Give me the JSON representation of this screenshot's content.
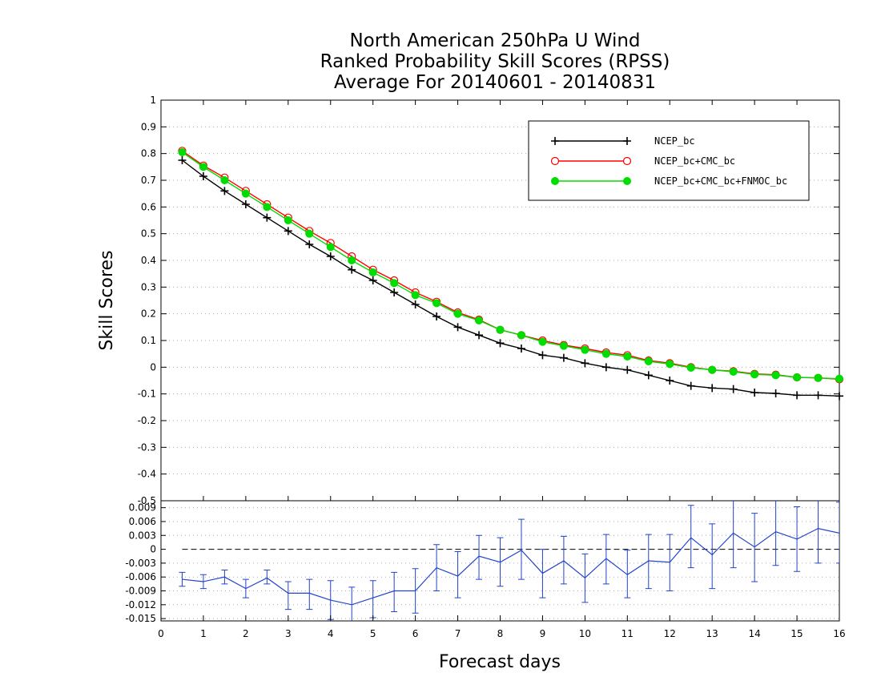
{
  "chart_data": [
    {
      "type": "line",
      "title": "North American 250hPa U Wind",
      "subtitle": "Ranked Probability Skill Scores (RPSS)",
      "subtitle2": "Average For 20140601 - 20140831",
      "ylabel": "Skill Scores",
      "xlabel": "Forecast days",
      "xlim": [
        0,
        16
      ],
      "ylim": [
        -0.5,
        1
      ],
      "y_ticks": [
        "-0.5",
        "-0.4",
        "-0.3",
        "-0.2",
        "-0.1",
        "0",
        "0.1",
        "0.2",
        "0.3",
        "0.4",
        "0.5",
        "0.6",
        "0.7",
        "0.8",
        "0.9",
        "1"
      ],
      "x_ticks": [
        "0",
        "1",
        "2",
        "3",
        "4",
        "5",
        "6",
        "7",
        "8",
        "9",
        "10",
        "11",
        "12",
        "13",
        "14",
        "15",
        "16"
      ],
      "grid": true,
      "legend_position": "top-right",
      "x": [
        0.5,
        1,
        1.5,
        2,
        2.5,
        3,
        3.5,
        4,
        4.5,
        5,
        5.5,
        6,
        6.5,
        7,
        7.5,
        8,
        8.5,
        9,
        9.5,
        10,
        10.5,
        11,
        11.5,
        12,
        12.5,
        13,
        13.5,
        14,
        14.5,
        15,
        15.5,
        16
      ],
      "series": [
        {
          "name": "NCEP_bc",
          "color": "#000000",
          "marker": "plus",
          "values": [
            0.775,
            0.715,
            0.66,
            0.61,
            0.56,
            0.51,
            0.46,
            0.415,
            0.365,
            0.325,
            0.28,
            0.235,
            0.19,
            0.15,
            0.12,
            0.09,
            0.07,
            0.045,
            0.035,
            0.015,
            0.0,
            -0.01,
            -0.03,
            -0.05,
            -0.07,
            -0.078,
            -0.082,
            -0.095,
            -0.098,
            -0.105,
            -0.105,
            -0.108
          ]
        },
        {
          "name": "NCEP_bc+CMC_bc",
          "color": "#ff0000",
          "marker": "open-circle",
          "values": [
            0.81,
            0.755,
            0.71,
            0.66,
            0.61,
            0.56,
            0.51,
            0.465,
            0.415,
            0.365,
            0.325,
            0.28,
            0.245,
            0.205,
            0.178,
            0.14,
            0.12,
            0.1,
            0.083,
            0.07,
            0.055,
            0.045,
            0.025,
            0.015,
            0.0,
            -0.01,
            -0.015,
            -0.025,
            -0.028,
            -0.038,
            -0.04,
            -0.045
          ]
        },
        {
          "name": "NCEP_bc+CMC_bc+FNMOC_bc",
          "color": "#00dd00",
          "marker": "filled-circle",
          "values": [
            0.805,
            0.75,
            0.7,
            0.65,
            0.6,
            0.55,
            0.5,
            0.45,
            0.4,
            0.355,
            0.315,
            0.27,
            0.24,
            0.2,
            0.175,
            0.14,
            0.12,
            0.095,
            0.08,
            0.065,
            0.05,
            0.04,
            0.022,
            0.012,
            -0.002,
            -0.01,
            -0.017,
            -0.027,
            -0.03,
            -0.038,
            -0.04,
            -0.043
          ]
        }
      ]
    },
    {
      "type": "line",
      "subtype": "errorbar",
      "xlim": [
        0,
        16
      ],
      "ylim": [
        -0.0155,
        0.0105
      ],
      "y_ticks": [
        "-0.015",
        "-0.012",
        "-0.009",
        "-0.006",
        "-0.003",
        "0",
        "0.003",
        "0.006",
        "0.009"
      ],
      "y_tick_values": [
        -0.015,
        -0.012,
        -0.009,
        -0.006,
        -0.003,
        0,
        0.003,
        0.006,
        0.009
      ],
      "grid": true,
      "zero_line": true,
      "series": [
        {
          "color": "#2244cc",
          "x": [
            0.5,
            1,
            1.5,
            2,
            2.5,
            3,
            3.5,
            4,
            4.5,
            5,
            5.5,
            6,
            6.5,
            7,
            7.5,
            8,
            8.5,
            9,
            9.5,
            10,
            10.5,
            11,
            11.5,
            12,
            12.5,
            13,
            13.5,
            14,
            14.5,
            15,
            15.5,
            16
          ],
          "values": [
            -0.0065,
            -0.007,
            -0.006,
            -0.0085,
            -0.0062,
            -0.0095,
            -0.0095,
            -0.011,
            -0.012,
            -0.0105,
            -0.009,
            -0.009,
            -0.004,
            -0.0058,
            -0.0015,
            -0.0028,
            -0.0002,
            -0.0052,
            -0.0025,
            -0.0062,
            -0.002,
            -0.0055,
            -0.0025,
            -0.0028,
            0.0025,
            -0.0012,
            0.0035,
            0.0005,
            0.0038,
            0.0022,
            0.0045,
            0.0035
          ],
          "error_low": [
            -0.008,
            -0.0085,
            -0.0075,
            -0.0105,
            -0.0075,
            -0.013,
            -0.013,
            -0.0152,
            -0.0158,
            -0.0148,
            -0.0135,
            -0.0138,
            -0.009,
            -0.0105,
            -0.0065,
            -0.008,
            -0.0065,
            -0.0105,
            -0.0075,
            -0.0115,
            -0.0075,
            -0.0105,
            -0.0085,
            -0.009,
            -0.004,
            -0.0085,
            -0.004,
            -0.007,
            -0.0035,
            -0.0048,
            -0.003,
            -0.003
          ],
          "error_high": [
            -0.005,
            -0.0055,
            -0.0045,
            -0.0065,
            -0.0045,
            -0.007,
            -0.0065,
            -0.0068,
            -0.0082,
            -0.0068,
            -0.005,
            -0.0042,
            0.001,
            -0.0005,
            0.003,
            0.0025,
            0.0065,
            0.0,
            0.0028,
            -0.001,
            0.0032,
            -0.0002,
            0.0032,
            0.0032,
            0.0095,
            0.0055,
            0.0112,
            0.0078,
            0.0112,
            0.0092,
            0.0112,
            0.0102
          ]
        }
      ]
    }
  ]
}
